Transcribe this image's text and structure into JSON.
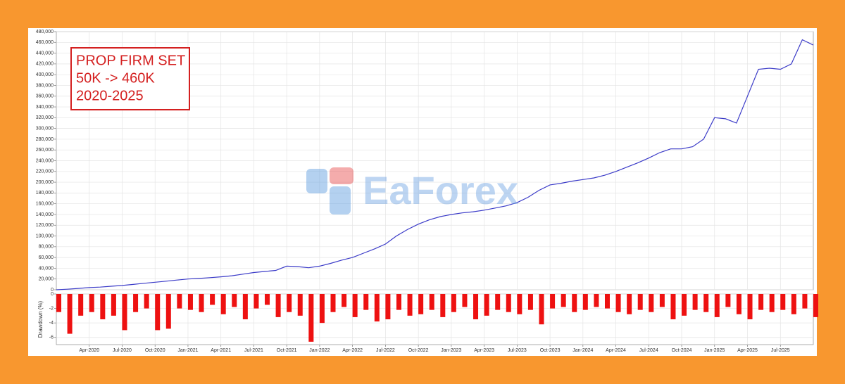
{
  "chart_data": [
    {
      "type": "line",
      "annotation": [
        "PROP FIRM SET",
        "50K -> 460K",
        "2020-2025"
      ],
      "watermark": "EaForex",
      "color": "#3b3bc8",
      "grid": true,
      "xlim": [
        "2020-01",
        "2025-10"
      ],
      "ylim": [
        0,
        480000
      ],
      "yticks": [
        0,
        {
          "value": 20000,
          "label": "20,000"
        },
        {
          "value": 40000,
          "label": "40,000"
        },
        {
          "value": 60000,
          "label": "60,000"
        },
        {
          "value": 80000,
          "label": "80,000"
        },
        {
          "value": 100000,
          "label": "100,000"
        },
        {
          "value": 120000,
          "label": "120,000"
        },
        {
          "value": 140000,
          "label": "140,000"
        },
        {
          "value": 160000,
          "label": "160,000"
        },
        {
          "value": 180000,
          "label": "180,000"
        },
        {
          "value": 200000,
          "label": "200,000"
        },
        {
          "value": 220000,
          "label": "220,000"
        },
        {
          "value": 240000,
          "label": "240,000"
        },
        {
          "value": 260000,
          "label": "260,000"
        },
        {
          "value": 280000,
          "label": "280,000"
        },
        {
          "value": 300000,
          "label": "300,000"
        },
        {
          "value": 320000,
          "label": "320,000"
        },
        {
          "value": 340000,
          "label": "340,000"
        },
        {
          "value": 360000,
          "label": "360,000"
        },
        {
          "value": 380000,
          "label": "380,000"
        },
        {
          "value": 400000,
          "label": "400,000"
        },
        {
          "value": 420000,
          "label": "420,000"
        },
        {
          "value": 440000,
          "label": "440,000"
        },
        {
          "value": 460000,
          "label": "460,000"
        },
        {
          "value": 480000,
          "label": "480,000"
        }
      ],
      "x": [
        "2020-01",
        "2020-02",
        "2020-03",
        "2020-04",
        "2020-05",
        "2020-06",
        "2020-07",
        "2020-08",
        "2020-09",
        "2020-10",
        "2020-11",
        "2020-12",
        "2021-01",
        "2021-02",
        "2021-03",
        "2021-04",
        "2021-05",
        "2021-06",
        "2021-07",
        "2021-08",
        "2021-09",
        "2021-10",
        "2021-11",
        "2021-12",
        "2022-01",
        "2022-02",
        "2022-03",
        "2022-04",
        "2022-05",
        "2022-06",
        "2022-07",
        "2022-08",
        "2022-09",
        "2022-10",
        "2022-11",
        "2022-12",
        "2023-01",
        "2023-02",
        "2023-03",
        "2023-04",
        "2023-05",
        "2023-06",
        "2023-07",
        "2023-08",
        "2023-09",
        "2023-10",
        "2023-11",
        "2023-12",
        "2024-01",
        "2024-02",
        "2024-03",
        "2024-04",
        "2024-05",
        "2024-06",
        "2024-07",
        "2024-08",
        "2024-09",
        "2024-10",
        "2024-11",
        "2024-12",
        "2025-01",
        "2025-02",
        "2025-03",
        "2025-04",
        "2025-05",
        "2025-06",
        "2025-07",
        "2025-08",
        "2025-09",
        "2025-10"
      ],
      "values": [
        0,
        1000,
        2500,
        4000,
        5000,
        6500,
        8000,
        10000,
        12000,
        14000,
        16000,
        18000,
        20000,
        21000,
        22500,
        24000,
        26000,
        29000,
        32000,
        34000,
        36000,
        44000,
        43000,
        41000,
        44000,
        49000,
        55000,
        60000,
        68000,
        76000,
        85000,
        100000,
        112000,
        122000,
        130000,
        136000,
        140000,
        143000,
        145000,
        148000,
        152000,
        156000,
        162000,
        172000,
        185000,
        195000,
        198000,
        202000,
        205000,
        208000,
        213000,
        220000,
        228000,
        236000,
        245000,
        255000,
        262000,
        262000,
        266000,
        280000,
        320000,
        318000,
        310000,
        360000,
        410000,
        412000,
        410000,
        420000,
        465000,
        455000
      ]
    },
    {
      "type": "bar",
      "y_label": "Drawdown (%)",
      "color": "#ee1111",
      "grid": true,
      "xlim": [
        "2020-01",
        "2025-10"
      ],
      "ylim": [
        -7,
        0
      ],
      "yticks": [
        0,
        -2,
        -4,
        -6
      ],
      "xticks": [
        {
          "value": "2020-04",
          "label": "Apr-2020"
        },
        {
          "value": "2020-07",
          "label": "Jul-2020"
        },
        {
          "value": "2020-10",
          "label": "Oct-2020"
        },
        {
          "value": "2021-01",
          "label": "Jan-2021"
        },
        {
          "value": "2021-04",
          "label": "Apr-2021"
        },
        {
          "value": "2021-07",
          "label": "Jul-2021"
        },
        {
          "value": "2021-10",
          "label": "Oct-2021"
        },
        {
          "value": "2022-01",
          "label": "Jan-2022"
        },
        {
          "value": "2022-04",
          "label": "Apr-2022"
        },
        {
          "value": "2022-07",
          "label": "Jul-2022"
        },
        {
          "value": "2022-10",
          "label": "Oct-2022"
        },
        {
          "value": "2023-01",
          "label": "Jan-2023"
        },
        {
          "value": "2023-04",
          "label": "Apr-2023"
        },
        {
          "value": "2023-07",
          "label": "Jul-2023"
        },
        {
          "value": "2023-10",
          "label": "Oct-2023"
        },
        {
          "value": "2024-01",
          "label": "Jan-2024"
        },
        {
          "value": "2024-04",
          "label": "Apr-2024"
        },
        {
          "value": "2024-07",
          "label": "Jul-2024"
        },
        {
          "value": "2024-10",
          "label": "Oct-2024"
        },
        {
          "value": "2025-01",
          "label": "Jan-2025"
        },
        {
          "value": "2025-04",
          "label": "Apr-2025"
        },
        {
          "value": "2025-07",
          "label": "Jul-2025"
        }
      ],
      "x": [
        "2020-01",
        "2020-02",
        "2020-03",
        "2020-04",
        "2020-05",
        "2020-06",
        "2020-07",
        "2020-08",
        "2020-09",
        "2020-10",
        "2020-11",
        "2020-12",
        "2021-01",
        "2021-02",
        "2021-03",
        "2021-04",
        "2021-05",
        "2021-06",
        "2021-07",
        "2021-08",
        "2021-09",
        "2021-10",
        "2021-11",
        "2021-12",
        "2022-01",
        "2022-02",
        "2022-03",
        "2022-04",
        "2022-05",
        "2022-06",
        "2022-07",
        "2022-08",
        "2022-09",
        "2022-10",
        "2022-11",
        "2022-12",
        "2023-01",
        "2023-02",
        "2023-03",
        "2023-04",
        "2023-05",
        "2023-06",
        "2023-07",
        "2023-08",
        "2023-09",
        "2023-10",
        "2023-11",
        "2023-12",
        "2024-01",
        "2024-02",
        "2024-03",
        "2024-04",
        "2024-05",
        "2024-06",
        "2024-07",
        "2024-08",
        "2024-09",
        "2024-10",
        "2024-11",
        "2024-12",
        "2025-01",
        "2025-02",
        "2025-03",
        "2025-04",
        "2025-05",
        "2025-06",
        "2025-07",
        "2025-08",
        "2025-09",
        "2025-10"
      ],
      "values": [
        -2.5,
        -5.5,
        -3,
        -2.5,
        -3.5,
        -3,
        -5,
        -2.5,
        -2,
        -5,
        -4.8,
        -2,
        -2.2,
        -2.5,
        -1.5,
        -2.8,
        -1.8,
        -3.5,
        -2,
        -1.5,
        -3.2,
        -2.5,
        -3,
        -6.6,
        -4,
        -2.5,
        -1.8,
        -3.2,
        -2.2,
        -3.8,
        -3.5,
        -2.2,
        -3,
        -2.8,
        -2.2,
        -3.2,
        -2.5,
        -1.8,
        -3.5,
        -3,
        -2.2,
        -2.5,
        -2.8,
        -2.2,
        -4.2,
        -2,
        -1.8,
        -2.5,
        -2.2,
        -1.8,
        -2,
        -2.5,
        -2.8,
        -2.2,
        -2.5,
        -1.8,
        -3.5,
        -3,
        -2.2,
        -2.5,
        -3.2,
        -1.8,
        -2.8,
        -3.5,
        -2.2,
        -2.5,
        -2.2,
        -2.8,
        -2,
        -3.2
      ]
    }
  ]
}
